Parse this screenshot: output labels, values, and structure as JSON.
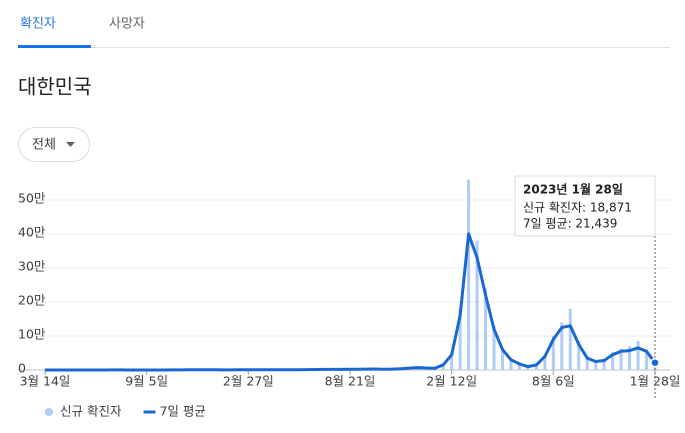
{
  "tabs": [
    "확진자",
    "사망자"
  ],
  "region": "대한민국",
  "filter": "전체",
  "chart_data": {
    "type": "bar-line",
    "categories": [
      "3월 14일",
      null,
      null,
      null,
      null,
      null,
      null,
      null,
      null,
      null,
      null,
      null,
      "9월 5일",
      null,
      null,
      null,
      null,
      null,
      null,
      null,
      null,
      null,
      null,
      null,
      "2월 27일",
      null,
      null,
      null,
      null,
      null,
      null,
      null,
      null,
      null,
      null,
      null,
      "8월 21일",
      null,
      null,
      null,
      null,
      null,
      null,
      null,
      null,
      null,
      null,
      null,
      "2월 12일",
      null,
      null,
      null,
      null,
      null,
      null,
      null,
      null,
      null,
      null,
      null,
      "8월 6일",
      null,
      null,
      null,
      null,
      null,
      null,
      null,
      null,
      null,
      null,
      null,
      "1월 28일"
    ],
    "series": [
      {
        "name": "신규 확진자",
        "color": "#aecbfa",
        "kind": "bar",
        "values": [
          120,
          60,
          40,
          50,
          60,
          40,
          50,
          70,
          330,
          220,
          110,
          120,
          110,
          100,
          120,
          230,
          450,
          800,
          1100,
          900,
          550,
          450,
          430,
          500,
          480,
          560,
          650,
          700,
          780,
          650,
          700,
          1400,
          1700,
          1900,
          2000,
          2100,
          2300,
          2300,
          2800,
          3300,
          2200,
          2800,
          3900,
          6000,
          7800,
          6500,
          5500,
          17000,
          54000,
          180000,
          560000,
          380000,
          240000,
          130000,
          65000,
          32000,
          20000,
          11000,
          17000,
          45000,
          100000,
          140000,
          180000,
          85000,
          40000,
          28000,
          32000,
          52000,
          62000,
          70000,
          85000,
          60000,
          18871
        ]
      },
      {
        "name": "7일 평균",
        "color": "#1967d2",
        "kind": "line",
        "values": [
          100,
          50,
          30,
          40,
          50,
          40,
          40,
          60,
          300,
          200,
          100,
          100,
          100,
          90,
          100,
          200,
          400,
          700,
          1000,
          800,
          500,
          400,
          400,
          450,
          450,
          500,
          600,
          650,
          700,
          600,
          650,
          1200,
          1500,
          1700,
          1800,
          1900,
          2000,
          2100,
          2500,
          3000,
          2000,
          2500,
          3500,
          5500,
          7000,
          6000,
          5000,
          15000,
          45000,
          160000,
          400000,
          330000,
          220000,
          120000,
          60000,
          30000,
          18000,
          10000,
          15000,
          40000,
          90000,
          125000,
          130000,
          75000,
          35000,
          25000,
          28000,
          45000,
          55000,
          57000,
          65000,
          55000,
          21439
        ]
      }
    ],
    "ylim": [
      0,
      570000
    ],
    "yticks": [
      0,
      {
        "value": 100000,
        "label": "10만"
      },
      {
        "value": 200000,
        "label": "20만"
      },
      {
        "value": 300000,
        "label": "30만"
      },
      {
        "value": 400000,
        "label": "40만"
      },
      {
        "value": 500000,
        "label": "50만"
      }
    ],
    "grid": true,
    "legend": "bottom",
    "tooltip": {
      "title": "2023년 1월 28일",
      "lines": [
        "신규 확진자: 18,871",
        "7일 평균: 21,439"
      ]
    }
  }
}
